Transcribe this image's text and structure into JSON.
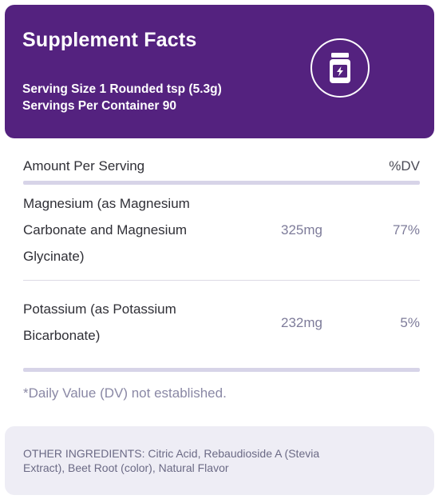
{
  "header": {
    "title": "Supplement Facts",
    "serving_size": "Serving Size 1 Rounded tsp (5.3g)",
    "servings_per_container": "Servings Per Container 90",
    "icon": "supplement-jar-icon"
  },
  "table": {
    "amount_per_serving_label": "Amount Per Serving",
    "dv_label": "%DV",
    "rows": [
      {
        "name_lines": [
          "Magnesium (as Magnesium",
          "Carbonate and Magnesium",
          "Glycinate)"
        ],
        "amount": "325mg",
        "dv": "77%"
      },
      {
        "name_lines": [
          "Potassium (as Potassium",
          "Bicarbonate)"
        ],
        "amount": "232mg",
        "dv": "5%"
      }
    ]
  },
  "footnote": "*Daily Value (DV) not established.",
  "other_ingredients": {
    "line1": "OTHER INGREDIENTS: Citric Acid, Rebaudioside A (Stevia",
    "line2": "Extract), Beet Root (color), Natural Flavor"
  },
  "colors": {
    "header_bg": "#54227f",
    "divider": "#d7d4e8",
    "muted_text": "#7e7c9a",
    "ingredients_bg": "#eeedf5"
  }
}
